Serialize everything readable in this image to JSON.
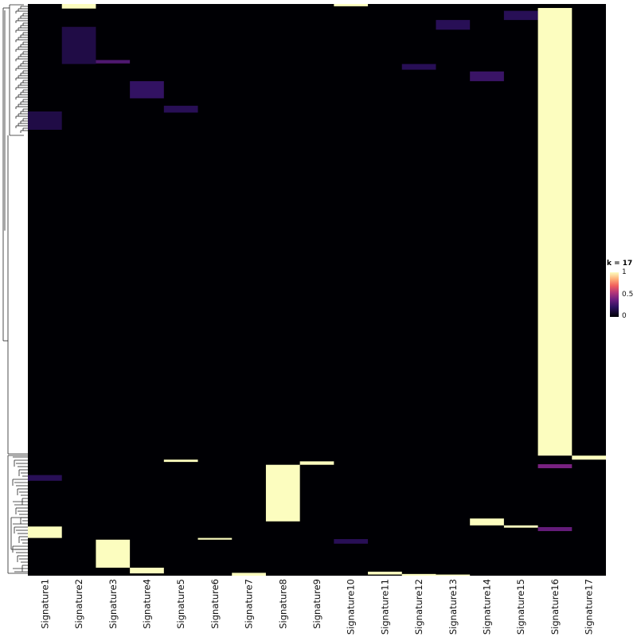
{
  "chart_data": {
    "type": "heatmap",
    "legend": {
      "title": "k = 17",
      "ticks": [
        "1",
        "0.5",
        "0"
      ],
      "colormap": [
        "#000004",
        "#2c115f",
        "#721f81",
        "#b63679",
        "#f1605d",
        "#feb078",
        "#fcfdbf"
      ]
    },
    "columns": [
      "Signature1",
      "Signature2",
      "Signature3",
      "Signature4",
      "Signature5",
      "Signature6",
      "Signature7",
      "Signature8",
      "Signature9",
      "Signature10",
      "Signature11",
      "Signature12",
      "Signature13",
      "Signature14",
      "Signature15",
      "Signature16",
      "Signature17"
    ],
    "value_range": [
      0,
      1
    ],
    "row_dendrogram": true,
    "blocks": [
      {
        "col": 1,
        "row_from": 0.0,
        "row_to": 0.008,
        "value": 1.0
      },
      {
        "col": 1,
        "row_from": 0.04,
        "row_to": 0.105,
        "value": 0.12
      },
      {
        "col": 0,
        "row_from": 0.188,
        "row_to": 0.22,
        "value": 0.12
      },
      {
        "col": 2,
        "row_from": 0.098,
        "row_to": 0.104,
        "value": 0.25
      },
      {
        "col": 3,
        "row_from": 0.135,
        "row_to": 0.165,
        "value": 0.18
      },
      {
        "col": 4,
        "row_from": 0.178,
        "row_to": 0.19,
        "value": 0.15
      },
      {
        "col": 9,
        "row_from": 0.0,
        "row_to": 0.004,
        "value": 1.0
      },
      {
        "col": 12,
        "row_from": 0.028,
        "row_to": 0.045,
        "value": 0.15
      },
      {
        "col": 11,
        "row_from": 0.105,
        "row_to": 0.115,
        "value": 0.15
      },
      {
        "col": 13,
        "row_from": 0.118,
        "row_to": 0.135,
        "value": 0.2
      },
      {
        "col": 14,
        "row_from": 0.012,
        "row_to": 0.028,
        "value": 0.15
      },
      {
        "col": 15,
        "row_from": 0.007,
        "row_to": 0.79,
        "value": 1.0
      },
      {
        "col": 16,
        "row_from": 0.79,
        "row_to": 0.797,
        "value": 1.0
      },
      {
        "col": 4,
        "row_from": 0.797,
        "row_to": 0.801,
        "value": 1.0
      },
      {
        "col": 8,
        "row_from": 0.8,
        "row_to": 0.806,
        "value": 1.0
      },
      {
        "col": 7,
        "row_from": 0.806,
        "row_to": 0.905,
        "value": 1.0
      },
      {
        "col": 15,
        "row_from": 0.805,
        "row_to": 0.812,
        "value": 0.35
      },
      {
        "col": 0,
        "row_from": 0.824,
        "row_to": 0.834,
        "value": 0.15
      },
      {
        "col": 13,
        "row_from": 0.9,
        "row_to": 0.912,
        "value": 1.0
      },
      {
        "col": 14,
        "row_from": 0.912,
        "row_to": 0.916,
        "value": 1.0
      },
      {
        "col": 0,
        "row_from": 0.914,
        "row_to": 0.934,
        "value": 1.0
      },
      {
        "col": 15,
        "row_from": 0.915,
        "row_to": 0.922,
        "value": 0.3
      },
      {
        "col": 5,
        "row_from": 0.934,
        "row_to": 0.937,
        "value": 1.0
      },
      {
        "col": 2,
        "row_from": 0.937,
        "row_to": 0.986,
        "value": 1.0
      },
      {
        "col": 9,
        "row_from": 0.936,
        "row_to": 0.944,
        "value": 0.15
      },
      {
        "col": 3,
        "row_from": 0.986,
        "row_to": 0.996,
        "value": 1.0
      },
      {
        "col": 6,
        "row_from": 0.995,
        "row_to": 1.0,
        "value": 1.0
      },
      {
        "col": 10,
        "row_from": 0.993,
        "row_to": 0.998,
        "value": 1.0
      },
      {
        "col": 11,
        "row_from": 0.997,
        "row_to": 1.0,
        "value": 1.0
      },
      {
        "col": 12,
        "row_from": 0.998,
        "row_to": 1.0,
        "value": 1.0
      }
    ]
  }
}
